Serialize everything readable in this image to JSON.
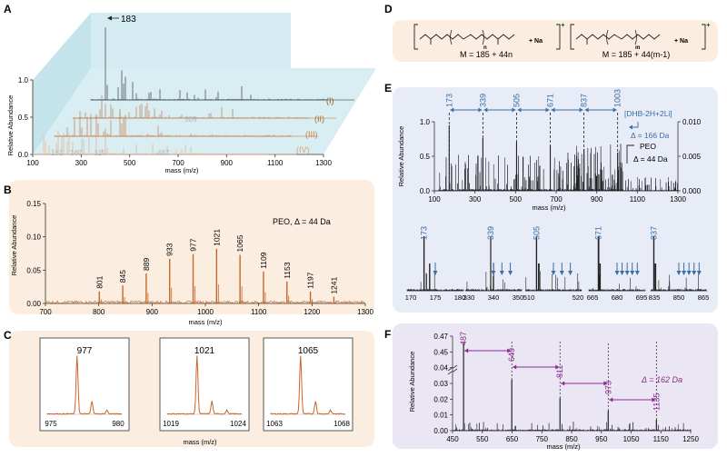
{
  "panel_letters": [
    "A",
    "B",
    "C",
    "D",
    "E",
    "F"
  ],
  "colors": {
    "orange": "#c8662a",
    "orange_light": "#e8a77a",
    "black": "#222222",
    "blue": "#3a6ea5",
    "purple": "#8a2b8f",
    "bg_orange": "#fbeee0",
    "bg_blue": "#e8ecf6",
    "bg_purple": "#ebe6f4",
    "bg_3d": "#c9e6ee"
  },
  "panel_a": {
    "peak_label": "183",
    "roman": [
      "(I)",
      "(II)",
      "(III)",
      "(IV)"
    ],
    "low_labels": [
      "161",
      "167",
      "315",
      "505",
      "487"
    ],
    "ylabel": "Relative Abundance",
    "xlabel": "mass (m/z)",
    "yticks": [
      "0.0",
      "0.5",
      "1.0"
    ],
    "xticks": [
      "100",
      "300",
      "500",
      "700",
      "900",
      "1100",
      "1300"
    ]
  },
  "panel_d": {
    "plus": "+",
    "na": "+ Na",
    "sub_n": "n",
    "sub_m": "m",
    "formula1": "M = 185 + 44n",
    "formula2": "M = 185 + 44(m-1)"
  },
  "chart_data": [
    {
      "id": "B",
      "type": "line",
      "title": "PEO, Δ = 44 Da",
      "xlabel": "mass (m/z)",
      "ylabel": "Relative Abundance",
      "xlim": [
        700,
        1300
      ],
      "ylim": [
        0,
        0.15
      ],
      "xticks": [
        "700",
        "800",
        "900",
        "1000",
        "1100",
        "1200",
        "1300"
      ],
      "yticks": [
        "0.00",
        "0.05",
        "0.10",
        "0.15"
      ],
      "peaks": [
        [
          801,
          0.018
        ],
        [
          845,
          0.027
        ],
        [
          889,
          0.045
        ],
        [
          933,
          0.067
        ],
        [
          977,
          0.074
        ],
        [
          1021,
          0.082
        ],
        [
          1065,
          0.073
        ],
        [
          1109,
          0.048
        ],
        [
          1153,
          0.033
        ],
        [
          1197,
          0.018
        ],
        [
          1241,
          0.01
        ]
      ]
    },
    {
      "id": "C",
      "type": "line",
      "xlabel": "mass (m/z)",
      "insets": [
        {
          "label": "977",
          "xticks": [
            "975",
            "980"
          ],
          "x0": 975,
          "x1": 980,
          "mono": 977
        },
        {
          "label": "1021",
          "xticks": [
            "1019",
            "1024"
          ],
          "x0": 1019,
          "x1": 1024,
          "mono": 1021
        },
        {
          "label": "1065",
          "xticks": [
            "1063",
            "1068"
          ],
          "x0": 1063,
          "x1": 1068,
          "mono": 1065
        }
      ]
    },
    {
      "id": "E",
      "type": "line",
      "xlabel": "mass (m/z)",
      "ylabel": "Relative Abundance",
      "xlim": [
        100,
        1300
      ],
      "xticks": [
        "100",
        "300",
        "500",
        "700",
        "900",
        "1100",
        "1300"
      ],
      "yticks_left": [
        "0.0",
        "0.5",
        "1.0"
      ],
      "yticks_right": [
        "0.000",
        "0.005",
        "0.010"
      ],
      "annot1": "[DHB-2H+2Li]",
      "annot1b": "Δ = 166 Da",
      "annot2": "PEO",
      "annot2b": "Δ = 44 Da",
      "dhb_series": [
        173,
        339,
        505,
        671,
        837,
        1003
      ],
      "zooms": [
        {
          "label": "173",
          "ticks": [
            "170",
            "175",
            "180"
          ],
          "center": 173,
          "t0": 170,
          "t1": 180
        },
        {
          "label": "339",
          "ticks": [
            "330",
            "340",
            "350"
          ],
          "center": 339,
          "t0": 330,
          "t1": 350
        },
        {
          "label": "505",
          "ticks": [
            "510",
            "520"
          ],
          "center": 505,
          "t0": 500,
          "t1": 525
        },
        {
          "label": "671",
          "ticks": [
            "665",
            "680",
            "695"
          ],
          "center": 671,
          "t0": 665,
          "t1": 700
        },
        {
          "label": "837",
          "ticks": [
            "835",
            "850",
            "865"
          ],
          "center": 837,
          "t0": 835,
          "t1": 870
        }
      ]
    },
    {
      "id": "F",
      "type": "line",
      "title": "Δ = 162 Da",
      "xlabel": "mass (m/z)",
      "ylabel": "Relative Abundance",
      "xlim": [
        450,
        1250
      ],
      "ylim": [
        0,
        0.47
      ],
      "xticks": [
        "450",
        "550",
        "650",
        "750",
        "850",
        "950",
        "1050",
        "1150",
        "1250"
      ],
      "yticks": [
        "0.00",
        "0.01",
        "0.02",
        "0.03",
        "0.04",
        "0.45",
        "0.47"
      ],
      "peaks": [
        [
          487,
          0.47
        ],
        [
          649,
          0.035
        ],
        [
          811,
          0.015
        ],
        [
          973,
          0.01
        ],
        [
          1135,
          0.004
        ]
      ]
    }
  ]
}
